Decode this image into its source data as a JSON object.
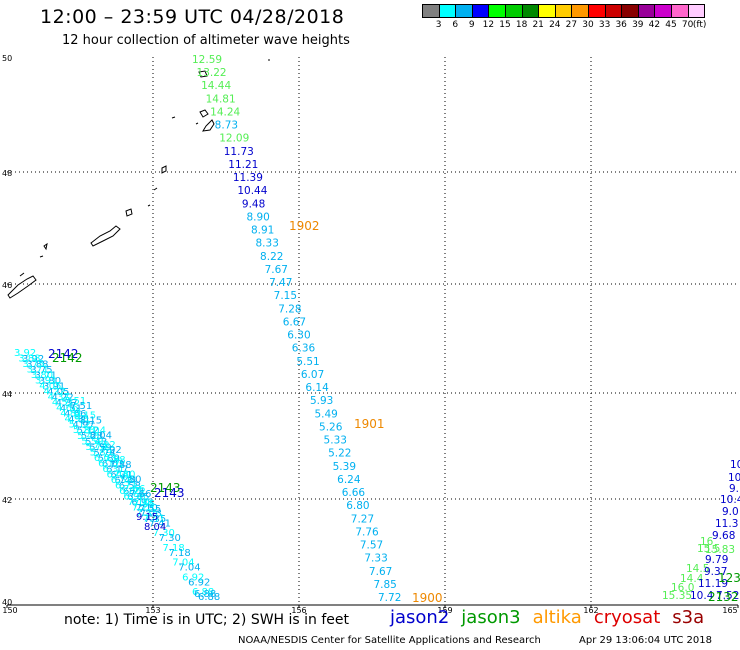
{
  "title": "12:00 – 23:59 UTC 04/28/2018",
  "subtitle": "12 hour collection of altimeter wave heights",
  "scale": {
    "colors": [
      "#808080",
      "#00ffff",
      "#00b0f0",
      "#0000ff",
      "#00ff00",
      "#00cc00",
      "#008800",
      "#ffff00",
      "#ffcc00",
      "#ff9900",
      "#ff0000",
      "#cc0000",
      "#880000",
      "#990099",
      "#cc00cc",
      "#ff66cc",
      "#ffccff"
    ],
    "labels": [
      "3",
      "6",
      "9",
      "12",
      "15",
      "18",
      "21",
      "24",
      "27",
      "30",
      "33",
      "36",
      "39",
      "42",
      "45",
      "70",
      "(ft)"
    ]
  },
  "axes": {
    "lat_labels": [
      "50",
      "48",
      "46",
      "44",
      "42",
      "40"
    ],
    "lon_labels": [
      "150",
      "153",
      "156",
      "159",
      "162",
      "165"
    ]
  },
  "colors": {
    "c9": "#00b0f0",
    "c12": "#0000cc",
    "c15": "#55ee55",
    "c6": "#00ffff",
    "time": "#ee8800"
  },
  "track_east": [
    {
      "v": "12.59",
      "c": "c15"
    },
    {
      "v": "13.22",
      "c": "c15"
    },
    {
      "v": "14.44",
      "c": "c15"
    },
    {
      "v": "14.81",
      "c": "c15"
    },
    {
      "v": "14.24",
      "c": "c15"
    },
    {
      "v": "8.73",
      "c": "c9"
    },
    {
      "v": "12.09",
      "c": "c15"
    },
    {
      "v": "11.73",
      "c": "c12"
    },
    {
      "v": "11.21",
      "c": "c12"
    },
    {
      "v": "11.39",
      "c": "c12"
    },
    {
      "v": "10.44",
      "c": "c12"
    },
    {
      "v": "9.48",
      "c": "c12"
    },
    {
      "v": "8.90",
      "c": "c9"
    },
    {
      "v": "8.91",
      "c": "c9"
    },
    {
      "v": "8.33",
      "c": "c9"
    },
    {
      "v": "8.22",
      "c": "c9"
    },
    {
      "v": "7.67",
      "c": "c9"
    },
    {
      "v": "7.47",
      "c": "c9"
    },
    {
      "v": "7.15",
      "c": "c9"
    },
    {
      "v": "7.28",
      "c": "c9"
    },
    {
      "v": "6.67",
      "c": "c9"
    },
    {
      "v": "6.30",
      "c": "c9"
    },
    {
      "v": "6.36",
      "c": "c9"
    },
    {
      "v": "5.51",
      "c": "c9"
    },
    {
      "v": "6.07",
      "c": "c9"
    },
    {
      "v": "6.14",
      "c": "c9"
    },
    {
      "v": "5.93",
      "c": "c9"
    },
    {
      "v": "5.49",
      "c": "c9"
    },
    {
      "v": "5.26",
      "c": "c9"
    },
    {
      "v": "5.33",
      "c": "c9"
    },
    {
      "v": "5.22",
      "c": "c9"
    },
    {
      "v": "5.39",
      "c": "c9"
    },
    {
      "v": "6.24",
      "c": "c9"
    },
    {
      "v": "6.66",
      "c": "c9"
    },
    {
      "v": "6.80",
      "c": "c9"
    },
    {
      "v": "7.27",
      "c": "c9"
    },
    {
      "v": "7.76",
      "c": "c9"
    },
    {
      "v": "7.57",
      "c": "c9"
    },
    {
      "v": "7.33",
      "c": "c9"
    },
    {
      "v": "7.67",
      "c": "c9"
    },
    {
      "v": "7.85",
      "c": "c9"
    },
    {
      "v": "7.72",
      "c": "c9"
    }
  ],
  "times": [
    {
      "label": "1902"
    },
    {
      "label": "1901"
    },
    {
      "label": "1900"
    }
  ],
  "west_tracks": {
    "labels": [
      {
        "t": "2142",
        "c": "#0000cc"
      },
      {
        "t": "2142",
        "c": "#009900"
      },
      {
        "t": "2143",
        "c": "#009900"
      },
      {
        "t": "2143",
        "c": "#0000cc"
      }
    ],
    "track_a_values": [
      "3.92",
      "3.88",
      "3.75",
      "3.71",
      "3.80",
      "3.91",
      "4.05",
      "4.22",
      "4.37",
      "4.51",
      "4.66",
      "4.81",
      "4.97",
      "5.12",
      "5.28",
      "5.43",
      "5.59",
      "5.74",
      "5.89",
      "6.03",
      "6.17",
      "6.31",
      "6.44",
      "6.58",
      "6.71",
      "6.85",
      "6.98",
      "7.10",
      "7.23",
      "7.35"
    ],
    "track_b_values": [
      "7.51",
      "8.15",
      "8.04",
      "7.92",
      "7.88",
      "7.80",
      "7.66",
      "7.55",
      "7.41",
      "7.30",
      "7.18",
      "7.04",
      "6.92",
      "6.88"
    ],
    "track_b_mid": [
      {
        "v": "9.15",
        "c": "#0000cc"
      },
      {
        "v": "8.04",
        "c": "#0000cc"
      }
    ],
    "track_b_end": "6.88"
  },
  "east_edge": {
    "right_column": [
      {
        "v": "10",
        "c": "#0000cc"
      },
      {
        "v": "10",
        "c": "#0000cc"
      },
      {
        "v": "9.",
        "c": "#0000cc"
      },
      {
        "v": "10.4",
        "c": "#0000cc"
      },
      {
        "v": "9.0",
        "c": "#0000cc"
      },
      {
        "v": "11.3",
        "c": "#0000cc"
      },
      {
        "v": "9.68",
        "c": "#0000cc"
      }
    ],
    "green_column": [
      {
        "v": "16",
        "c": "#55ee55"
      },
      {
        "v": "15.5",
        "c": "#55ee55"
      },
      {
        "v": "15.83",
        "c": "#55ee55"
      },
      {
        "v": "9.79",
        "c": "#0000cc"
      },
      {
        "v": "14.5",
        "c": "#55ee55"
      },
      {
        "v": "9.37",
        "c": "#0000cc"
      },
      {
        "v": "14.4",
        "c": "#55ee55"
      },
      {
        "v": "11.19",
        "c": "#0000cc"
      },
      {
        "v": "16.0",
        "c": "#55ee55"
      },
      {
        "v": "15.35",
        "c": "#55ee55"
      },
      {
        "v": "10.4",
        "c": "#0000cc"
      },
      {
        "v": "7.52",
        "c": "#0000cc"
      }
    ],
    "time_labels": [
      {
        "t": "123",
        "c": "#009900"
      },
      {
        "t": "2132",
        "c": "#009900"
      }
    ]
  },
  "note": "note:  1) Time is in UTC;  2) SWH is in feet",
  "legend": [
    {
      "label": "jason2",
      "color": "#0000cc"
    },
    {
      "label": "jason3",
      "color": "#009900"
    },
    {
      "label": "altika",
      "color": "#ff9900"
    },
    {
      "label": "cryosat",
      "color": "#dd0000"
    },
    {
      "label": "s3a",
      "color": "#990000"
    }
  ],
  "footer_left": "NOAA/NESDIS Center for Satellite Applications and Research",
  "footer_right": "Apr 29 13:06:04 UTC 2018"
}
